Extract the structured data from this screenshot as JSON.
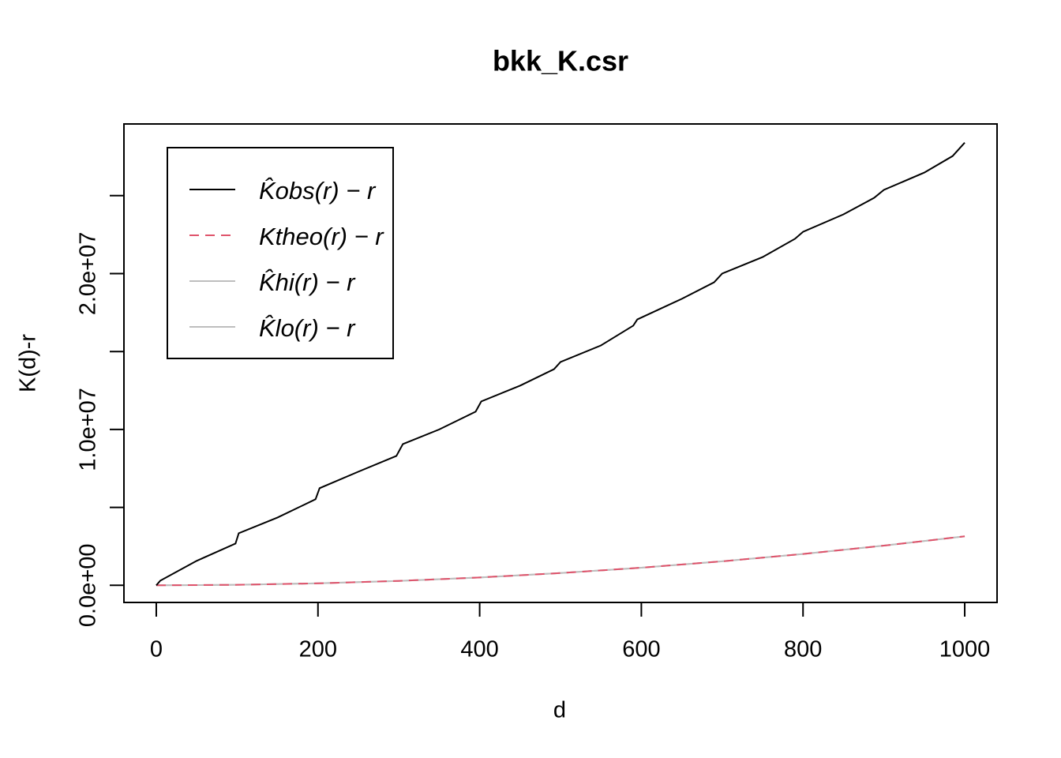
{
  "chart_data": {
    "type": "line",
    "title": "bkk_K.csr",
    "x_label": "d",
    "y_label": "K(d)-r",
    "xlim": [
      -40,
      1040
    ],
    "ylim": [
      -1100000,
      29600000
    ],
    "xticks": [
      0,
      200,
      400,
      600,
      800,
      1000
    ],
    "yticks": [
      {
        "value": 0,
        "label": "0.0e+00"
      },
      {
        "value": 5000000,
        "label": null
      },
      {
        "value": 10000000,
        "label": "1.0e+07"
      },
      {
        "value": 15000000,
        "label": null
      },
      {
        "value": 20000000,
        "label": "2.0e+07"
      },
      {
        "value": 25000000,
        "label": null
      }
    ],
    "series": [
      {
        "name": "K̂obs(r) − r",
        "color": "#000000",
        "dashed": false,
        "x": [
          0,
          5,
          50,
          98,
          102,
          150,
          197,
          202,
          250,
          297,
          305,
          350,
          395,
          402,
          450,
          492,
          500,
          550,
          590,
          595,
          650,
          690,
          700,
          750,
          790,
          800,
          850,
          888,
          900,
          950,
          985,
          1000
        ],
        "values": [
          0,
          300000,
          1570000,
          2680000,
          3340000,
          4350000,
          5520000,
          6230000,
          7290000,
          8300000,
          9060000,
          10000000,
          11140000,
          11800000,
          12810000,
          13870000,
          14330000,
          15390000,
          16660000,
          17060000,
          18380000,
          19440000,
          20000000,
          21060000,
          22230000,
          22680000,
          23800000,
          24860000,
          25370000,
          26480000,
          27540000,
          28400000
        ]
      },
      {
        "name": "Ktheo(r) − r",
        "color": "#DF536B",
        "dashed": true,
        "x": [
          0,
          100,
          200,
          300,
          400,
          500,
          600,
          700,
          800,
          900,
          1000
        ],
        "values": [
          0,
          31000,
          126000,
          283000,
          503000,
          785000,
          1131000,
          1539000,
          2011000,
          2545000,
          3142000
        ]
      },
      {
        "name": "K̂hi(r) − r",
        "color": "#BEBEBE",
        "dashed": false,
        "x": [
          0,
          100,
          200,
          300,
          400,
          500,
          600,
          700,
          800,
          900,
          1000
        ],
        "values": [
          0,
          31000,
          126000,
          283000,
          503000,
          785000,
          1131000,
          1539000,
          2011000,
          2545000,
          3142000
        ]
      },
      {
        "name": "K̂lo(r) − r",
        "color": "#BEBEBE",
        "dashed": false,
        "x": [
          0,
          100,
          200,
          300,
          400,
          500,
          600,
          700,
          800,
          900,
          1000
        ],
        "values": [
          0,
          31000,
          126000,
          283000,
          503000,
          785000,
          1131000,
          1539000,
          2011000,
          2545000,
          3142000
        ]
      }
    ]
  }
}
